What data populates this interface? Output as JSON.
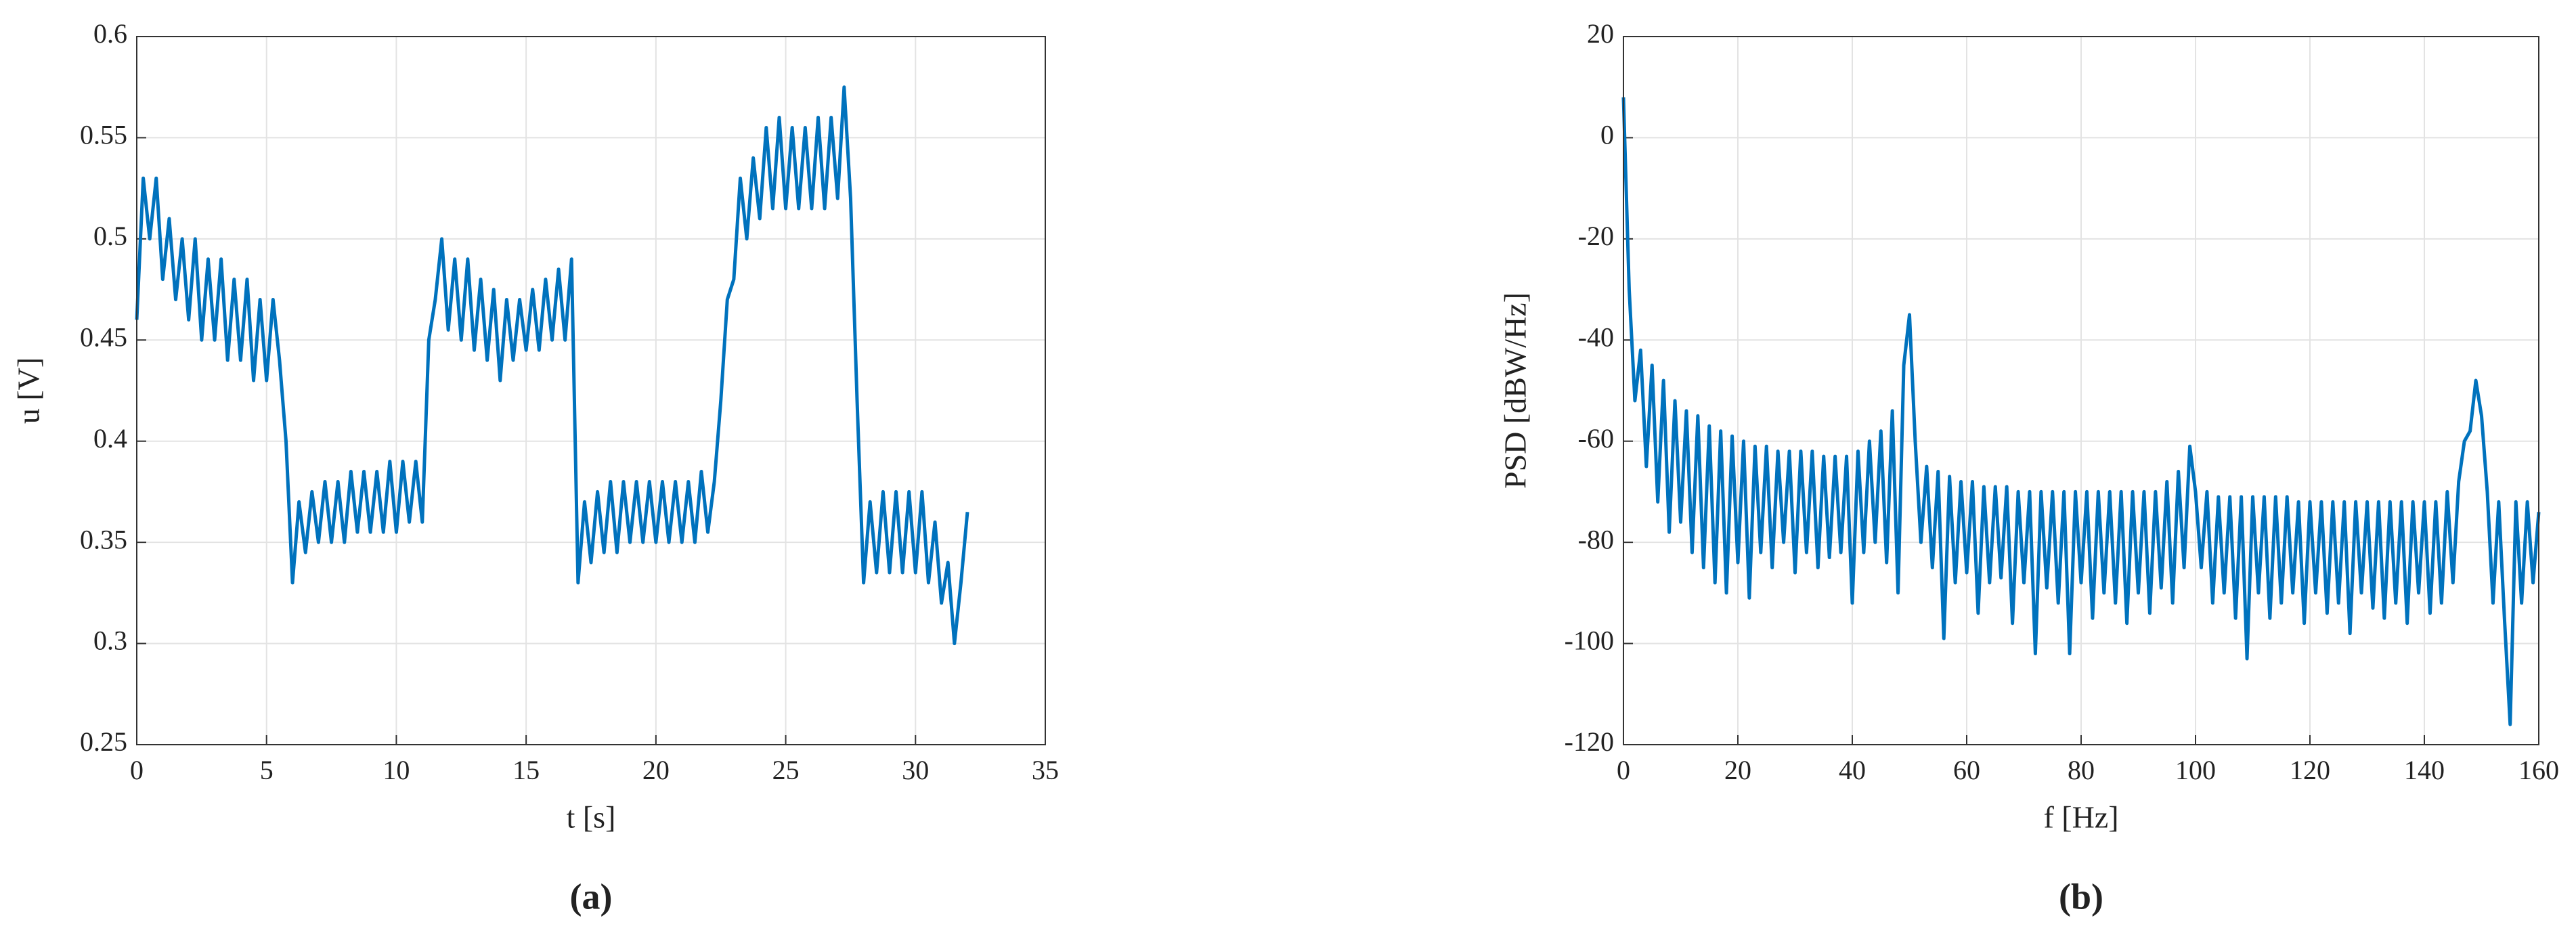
{
  "chart_data": [
    {
      "type": "line",
      "caption": "(a)",
      "x_label": "t [s]",
      "y_label": "u [V]",
      "x": [
        0,
        0.25,
        0.5,
        0.75,
        1,
        1.25,
        1.5,
        1.75,
        2,
        2.25,
        2.5,
        2.75,
        3,
        3.25,
        3.5,
        3.75,
        4,
        4.25,
        4.5,
        4.75,
        5,
        5.25,
        5.5,
        5.75,
        6,
        6.25,
        6.5,
        6.75,
        7,
        7.25,
        7.5,
        7.75,
        8,
        8.25,
        8.5,
        8.75,
        9,
        9.25,
        9.5,
        9.75,
        10,
        10.25,
        10.5,
        10.75,
        11,
        11.25,
        11.5,
        11.75,
        12,
        12.25,
        12.5,
        12.75,
        13,
        13.25,
        13.5,
        13.75,
        14,
        14.25,
        14.5,
        14.75,
        15,
        15.25,
        15.5,
        15.75,
        16,
        16.25,
        16.5,
        16.75,
        17,
        17.25,
        17.5,
        17.75,
        18,
        18.25,
        18.5,
        18.75,
        19,
        19.25,
        19.5,
        19.75,
        20,
        20.25,
        20.5,
        20.75,
        21,
        21.25,
        21.5,
        21.75,
        22,
        22.25,
        22.5,
        22.75,
        23,
        23.25,
        23.5,
        23.75,
        24,
        24.25,
        24.5,
        24.75,
        25,
        25.25,
        25.5,
        25.75,
        26,
        26.25,
        26.5,
        26.75,
        27,
        27.25,
        27.5,
        27.75,
        28,
        28.25,
        28.5,
        28.75,
        29,
        29.25,
        29.5,
        29.75,
        30,
        30.25,
        30.5,
        30.75,
        31,
        31.25,
        31.5,
        31.75,
        32
      ],
      "series": [
        {
          "color": "#0072bd",
          "values": [
            0.46,
            0.53,
            0.5,
            0.53,
            0.48,
            0.51,
            0.47,
            0.5,
            0.46,
            0.5,
            0.45,
            0.49,
            0.45,
            0.49,
            0.44,
            0.48,
            0.44,
            0.48,
            0.43,
            0.47,
            0.43,
            0.47,
            0.44,
            0.4,
            0.33,
            0.37,
            0.345,
            0.375,
            0.35,
            0.38,
            0.35,
            0.38,
            0.35,
            0.385,
            0.355,
            0.385,
            0.355,
            0.385,
            0.355,
            0.39,
            0.355,
            0.39,
            0.36,
            0.39,
            0.36,
            0.45,
            0.47,
            0.5,
            0.455,
            0.49,
            0.45,
            0.49,
            0.445,
            0.48,
            0.44,
            0.475,
            0.43,
            0.47,
            0.44,
            0.47,
            0.445,
            0.475,
            0.445,
            0.48,
            0.45,
            0.485,
            0.45,
            0.49,
            0.33,
            0.37,
            0.34,
            0.375,
            0.345,
            0.38,
            0.345,
            0.38,
            0.35,
            0.38,
            0.35,
            0.38,
            0.35,
            0.38,
            0.35,
            0.38,
            0.35,
            0.38,
            0.35,
            0.385,
            0.355,
            0.38,
            0.42,
            0.47,
            0.48,
            0.53,
            0.5,
            0.54,
            0.51,
            0.555,
            0.515,
            0.56,
            0.515,
            0.555,
            0.515,
            0.555,
            0.515,
            0.56,
            0.515,
            0.56,
            0.52,
            0.575,
            0.52,
            0.42,
            0.33,
            0.37,
            0.335,
            0.375,
            0.335,
            0.375,
            0.335,
            0.375,
            0.335,
            0.375,
            0.33,
            0.36,
            0.32,
            0.34,
            0.3,
            0.33,
            0.365
          ]
        }
      ],
      "xlim": [
        0,
        35
      ],
      "ylim": [
        0.25,
        0.6
      ],
      "xticks": [
        0,
        5,
        10,
        15,
        20,
        25,
        30,
        35
      ],
      "yticks": [
        0.25,
        0.3,
        0.35,
        0.4,
        0.45,
        0.5,
        0.55,
        0.6
      ],
      "grid": true
    },
    {
      "type": "line",
      "caption": "(b)",
      "x_label": "f [Hz]",
      "y_label": "PSD [dBW/Hz]",
      "x": [
        0,
        1,
        2,
        3,
        4,
        5,
        6,
        7,
        8,
        9,
        10,
        11,
        12,
        13,
        14,
        15,
        16,
        17,
        18,
        19,
        20,
        21,
        22,
        23,
        24,
        25,
        26,
        27,
        28,
        29,
        30,
        31,
        32,
        33,
        34,
        35,
        36,
        37,
        38,
        39,
        40,
        41,
        42,
        43,
        44,
        45,
        46,
        47,
        48,
        49,
        50,
        51,
        52,
        53,
        54,
        55,
        56,
        57,
        58,
        59,
        60,
        61,
        62,
        63,
        64,
        65,
        66,
        67,
        68,
        69,
        70,
        71,
        72,
        73,
        74,
        75,
        76,
        77,
        78,
        79,
        80,
        81,
        82,
        83,
        84,
        85,
        86,
        87,
        88,
        89,
        90,
        91,
        92,
        93,
        94,
        95,
        96,
        97,
        98,
        99,
        100,
        101,
        102,
        103,
        104,
        105,
        106,
        107,
        108,
        109,
        110,
        111,
        112,
        113,
        114,
        115,
        116,
        117,
        118,
        119,
        120,
        121,
        122,
        123,
        124,
        125,
        126,
        127,
        128,
        129,
        130,
        131,
        132,
        133,
        134,
        135,
        136,
        137,
        138,
        139,
        140,
        141,
        142,
        143,
        144,
        145,
        146,
        147,
        148,
        149,
        150,
        151,
        152,
        153,
        154,
        155,
        156,
        157,
        158,
        159,
        160
      ],
      "series": [
        {
          "color": "#0072bd",
          "values": [
            8,
            -30,
            -52,
            -42,
            -65,
            -45,
            -72,
            -48,
            -78,
            -52,
            -76,
            -54,
            -82,
            -55,
            -85,
            -57,
            -88,
            -58,
            -90,
            -59,
            -84,
            -60,
            -91,
            -61,
            -82,
            -61,
            -85,
            -62,
            -80,
            -62,
            -86,
            -62,
            -82,
            -62,
            -85,
            -63,
            -83,
            -63,
            -82,
            -63,
            -92,
            -62,
            -82,
            -60,
            -80,
            -58,
            -84,
            -54,
            -90,
            -45,
            -35,
            -60,
            -80,
            -65,
            -85,
            -66,
            -99,
            -67,
            -88,
            -68,
            -86,
            -68,
            -94,
            -69,
            -88,
            -69,
            -87,
            -69,
            -96,
            -70,
            -88,
            -70,
            -102,
            -70,
            -89,
            -70,
            -92,
            -70,
            -102,
            -70,
            -88,
            -70,
            -95,
            -70,
            -90,
            -70,
            -92,
            -70,
            -96,
            -70,
            -90,
            -70,
            -94,
            -70,
            -89,
            -68,
            -92,
            -66,
            -85,
            -61,
            -70,
            -85,
            -70,
            -92,
            -71,
            -90,
            -71,
            -95,
            -71,
            -103,
            -71,
            -90,
            -71,
            -95,
            -71,
            -92,
            -71,
            -90,
            -72,
            -96,
            -72,
            -90,
            -72,
            -94,
            -72,
            -92,
            -72,
            -98,
            -72,
            -90,
            -72,
            -93,
            -72,
            -95,
            -72,
            -92,
            -72,
            -96,
            -72,
            -90,
            -72,
            -94,
            -72,
            -92,
            -70,
            -88,
            -68,
            -60,
            -58,
            -48,
            -55,
            -70,
            -92,
            -72,
            -95,
            -116,
            -72,
            -92,
            -72,
            -88,
            -74
          ]
        }
      ],
      "xlim": [
        0,
        160
      ],
      "ylim": [
        -120,
        20
      ],
      "xticks": [
        0,
        20,
        40,
        60,
        80,
        100,
        120,
        140,
        160
      ],
      "yticks": [
        -120,
        -100,
        -80,
        -60,
        -40,
        -20,
        0,
        20
      ],
      "grid": true
    }
  ]
}
